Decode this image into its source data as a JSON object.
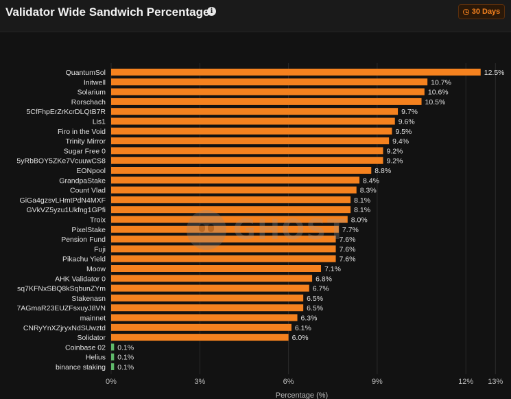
{
  "header": {
    "title": "Validator Wide Sandwich Percentage",
    "info_icon": "info-icon",
    "range_button": {
      "icon": "clock-icon",
      "label": "30 Days"
    }
  },
  "watermark": {
    "icon": "ghost-icon",
    "text": "GHOST"
  },
  "colors": {
    "orange": "#f5821f",
    "green": "#5fb96a",
    "background": "#121212"
  },
  "chart_data": {
    "type": "bar",
    "orientation": "horizontal",
    "xlabel": "Percentage (%)",
    "xlim": [
      0,
      13
    ],
    "x_ticks": [
      0,
      3,
      6,
      9,
      12,
      13
    ],
    "x_tick_labels": [
      "0%",
      "3%",
      "6%",
      "9%",
      "12%",
      "13%"
    ],
    "grid": true,
    "categories": [
      "QuantumSol",
      "Initwell",
      "Solarium",
      "Rorschach",
      "5CfFhpErZrKcrDLQtB7R",
      "Lis1",
      "Firo in the Void",
      "Trinity Mirror",
      "Sugar Free 0",
      "5yRbBOY5ZKe7VcuuwCS8",
      "EONpool",
      "GrandpaStake",
      "Count Vlad",
      "GiGa4gzsvLHmtPdN4MXF",
      "GVkVZ5yzu1Ukfng1GPfi",
      "Troix",
      "PixelStake",
      "Pension Fund",
      "Fuji",
      "Pikachu Yield",
      "Moow",
      "AHK Validator 0",
      "sq7KFNxSBQ8kSqbunZYm",
      "Stakenasn",
      "7AGmaR23EUZFsxuyJ8VN",
      "mainnet",
      "CNRyYnXZjryxNdSUwztd",
      "Solidator",
      "Coinbase 02",
      "Helius",
      "binance staking"
    ],
    "values": [
      12.5,
      10.7,
      10.6,
      10.5,
      9.7,
      9.6,
      9.5,
      9.4,
      9.2,
      9.2,
      8.8,
      8.4,
      8.3,
      8.1,
      8.1,
      8.0,
      7.7,
      7.6,
      7.6,
      7.6,
      7.1,
      6.8,
      6.7,
      6.5,
      6.5,
      6.3,
      6.1,
      6.0,
      0.1,
      0.1,
      0.1
    ],
    "value_labels": [
      "12.5%",
      "10.7%",
      "10.6%",
      "10.5%",
      "9.7%",
      "9.6%",
      "9.5%",
      "9.4%",
      "9.2%",
      "9.2%",
      "8.8%",
      "8.4%",
      "8.3%",
      "8.1%",
      "8.1%",
      "8.0%",
      "7.7%",
      "7.6%",
      "7.6%",
      "7.6%",
      "7.1%",
      "6.8%",
      "6.7%",
      "6.5%",
      "6.5%",
      "6.3%",
      "6.1%",
      "6.0%",
      "0.1%",
      "0.1%",
      "0.1%"
    ],
    "bar_colors": [
      "#f5821f",
      "#f5821f",
      "#f5821f",
      "#f5821f",
      "#f5821f",
      "#f5821f",
      "#f5821f",
      "#f5821f",
      "#f5821f",
      "#f5821f",
      "#f5821f",
      "#f5821f",
      "#f5821f",
      "#f5821f",
      "#f5821f",
      "#f5821f",
      "#f5821f",
      "#f5821f",
      "#f5821f",
      "#f5821f",
      "#f5821f",
      "#f5821f",
      "#f5821f",
      "#f5821f",
      "#f5821f",
      "#f5821f",
      "#f5821f",
      "#f5821f",
      "#5fb96a",
      "#5fb96a",
      "#5fb96a"
    ]
  }
}
